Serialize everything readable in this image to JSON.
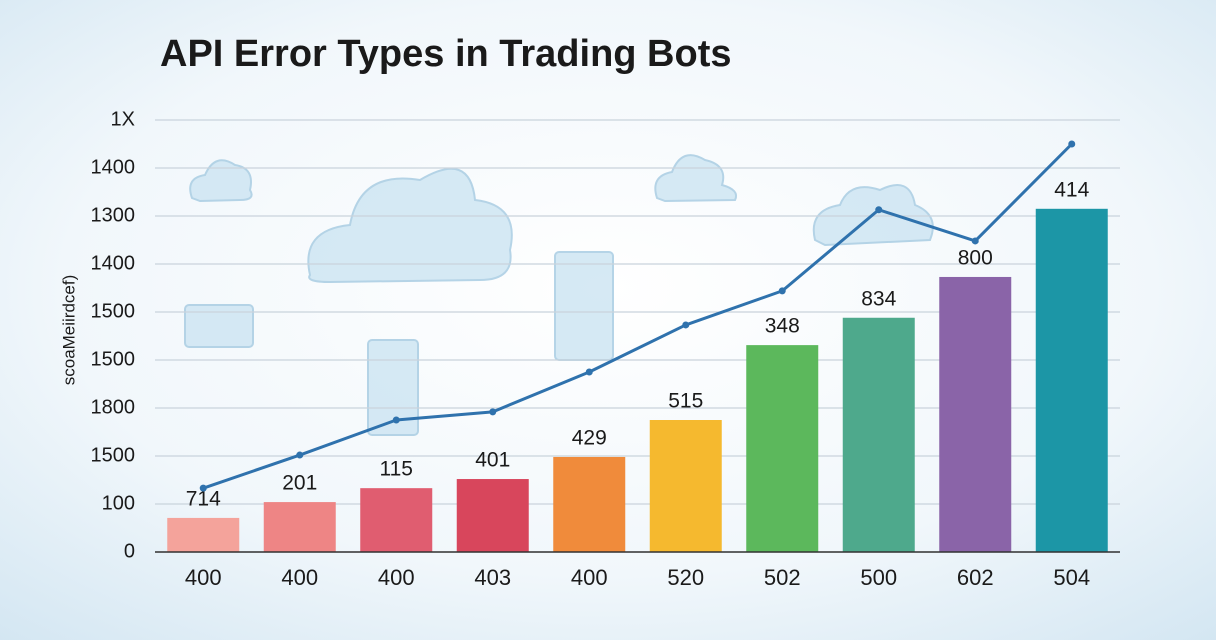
{
  "chart_data": {
    "type": "bar",
    "title": "API Error Types in Trading Bots",
    "y_label": "scoaMeiirdcef)",
    "categories": [
      "400",
      "400",
      "400",
      "403",
      "400",
      "520",
      "502",
      "500",
      "602",
      "504"
    ],
    "values": [
      0.71,
      1.04,
      1.33,
      1.52,
      1.98,
      2.75,
      4.31,
      4.88,
      5.73,
      7.15
    ],
    "bar_annotations": [
      "714",
      "201",
      "115",
      "401",
      "429",
      "515",
      "348",
      "834",
      "800",
      "414"
    ],
    "colors": [
      "#f4a39b",
      "#ee8585",
      "#e05d70",
      "#d8465c",
      "#f08b3b",
      "#f5b92f",
      "#5cb85c",
      "#4ea98c",
      "#8a64a8",
      "#1c96a6"
    ],
    "line": {
      "color": "#2f72ad",
      "values": [
        1.33,
        2.02,
        2.75,
        2.92,
        3.75,
        4.73,
        5.44,
        7.13,
        6.48,
        8.5
      ]
    },
    "ylim": [
      0,
      9
    ],
    "yticks": [
      0,
      {
        "value": 1,
        "label": "100"
      },
      {
        "value": 2,
        "label": "1500"
      },
      {
        "value": 3,
        "label": "1800"
      },
      {
        "value": 4,
        "label": "1500"
      },
      {
        "value": 5,
        "label": "1500"
      },
      {
        "value": 6,
        "label": "1400"
      },
      {
        "value": 7,
        "label": "1300"
      },
      {
        "value": 8,
        "label": "1400"
      },
      {
        "value": 9,
        "label": "1X"
      }
    ],
    "grid": true
  }
}
